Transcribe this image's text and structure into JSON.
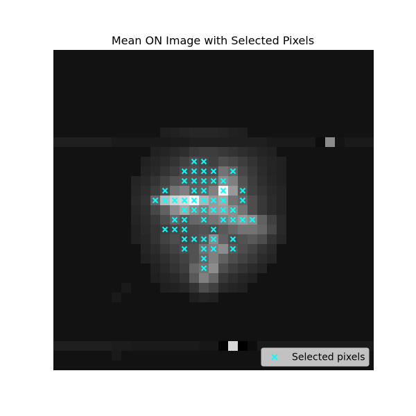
{
  "chart_data": {
    "type": "heatmap",
    "title": "Mean ON Image with Selected Pixels",
    "xlabel": "",
    "ylabel": "",
    "grid": false,
    "axes_visible": false,
    "colormap": "gray",
    "shape": [
      33,
      33
    ],
    "background_value": 0.07,
    "image": [
      [
        0,
        13,
        0.12
      ],
      [
        1,
        13,
        0.12
      ],
      [
        2,
        13,
        0.12
      ],
      [
        3,
        13,
        0.12
      ],
      [
        4,
        13,
        0.12
      ],
      [
        5,
        13,
        0.12
      ],
      [
        6,
        13,
        0.1
      ],
      [
        7,
        13,
        0.1
      ],
      [
        8,
        13,
        0.1
      ],
      [
        9,
        13,
        0.1
      ],
      [
        10,
        13,
        0.1
      ],
      [
        11,
        13,
        0.1
      ],
      [
        12,
        13,
        0.11
      ],
      [
        13,
        13,
        0.11
      ],
      [
        14,
        13,
        0.12
      ],
      [
        15,
        13,
        0.12
      ],
      [
        16,
        13,
        0.12
      ],
      [
        17,
        13,
        0.12
      ],
      [
        18,
        13,
        0.12
      ],
      [
        19,
        13,
        0.12
      ],
      [
        20,
        13,
        0.12
      ],
      [
        21,
        13,
        0.12
      ],
      [
        22,
        13,
        0.1
      ],
      [
        23,
        13,
        0.1
      ],
      [
        24,
        13,
        0.1
      ],
      [
        25,
        13,
        0.1
      ],
      [
        26,
        13,
        0.1
      ],
      [
        27,
        13,
        0.1
      ],
      [
        28,
        13,
        0.1
      ],
      [
        29,
        13,
        0.1
      ],
      [
        30,
        13,
        0.1
      ],
      [
        31,
        13,
        0.1
      ],
      [
        32,
        13,
        0.1
      ],
      [
        28,
        13,
        0.55
      ],
      [
        27,
        13,
        0.05
      ],
      [
        29,
        13,
        0.08
      ],
      [
        11,
        12,
        0.12
      ],
      [
        12,
        12,
        0.13
      ],
      [
        13,
        12,
        0.14
      ],
      [
        14,
        12,
        0.15
      ],
      [
        15,
        12,
        0.15
      ],
      [
        16,
        12,
        0.15
      ],
      [
        17,
        12,
        0.14
      ],
      [
        18,
        12,
        0.13
      ],
      [
        19,
        12,
        0.12
      ],
      [
        10,
        14,
        0.13
      ],
      [
        11,
        14,
        0.14
      ],
      [
        12,
        14,
        0.16
      ],
      [
        13,
        14,
        0.18
      ],
      [
        14,
        14,
        0.22
      ],
      [
        15,
        14,
        0.24
      ],
      [
        16,
        14,
        0.24
      ],
      [
        17,
        14,
        0.22
      ],
      [
        18,
        14,
        0.2
      ],
      [
        19,
        14,
        0.18
      ],
      [
        20,
        14,
        0.16
      ],
      [
        21,
        14,
        0.14
      ],
      [
        22,
        14,
        0.13
      ],
      [
        9,
        15,
        0.13
      ],
      [
        10,
        15,
        0.15
      ],
      [
        11,
        15,
        0.17
      ],
      [
        12,
        15,
        0.2
      ],
      [
        13,
        15,
        0.25
      ],
      [
        14,
        15,
        0.3
      ],
      [
        15,
        15,
        0.28
      ],
      [
        16,
        15,
        0.25
      ],
      [
        17,
        15,
        0.3
      ],
      [
        18,
        15,
        0.28
      ],
      [
        19,
        15,
        0.24
      ],
      [
        20,
        15,
        0.2
      ],
      [
        21,
        15,
        0.16
      ],
      [
        22,
        15,
        0.14
      ],
      [
        23,
        15,
        0.13
      ],
      [
        9,
        16,
        0.14
      ],
      [
        10,
        16,
        0.16
      ],
      [
        11,
        16,
        0.2
      ],
      [
        12,
        16,
        0.24
      ],
      [
        13,
        16,
        0.3
      ],
      [
        14,
        16,
        0.32
      ],
      [
        15,
        16,
        0.3
      ],
      [
        16,
        16,
        0.3
      ],
      [
        17,
        16,
        0.45
      ],
      [
        18,
        16,
        0.4
      ],
      [
        19,
        16,
        0.28
      ],
      [
        20,
        16,
        0.22
      ],
      [
        21,
        16,
        0.17
      ],
      [
        22,
        16,
        0.14
      ],
      [
        23,
        16,
        0.13
      ],
      [
        8,
        17,
        0.14
      ],
      [
        9,
        17,
        0.16
      ],
      [
        10,
        17,
        0.2
      ],
      [
        11,
        17,
        0.26
      ],
      [
        12,
        17,
        0.32
      ],
      [
        13,
        17,
        0.34
      ],
      [
        14,
        17,
        0.35
      ],
      [
        15,
        17,
        0.36
      ],
      [
        16,
        17,
        0.38
      ],
      [
        17,
        17,
        0.55
      ],
      [
        18,
        17,
        0.5
      ],
      [
        19,
        17,
        0.32
      ],
      [
        20,
        17,
        0.24
      ],
      [
        21,
        17,
        0.18
      ],
      [
        22,
        17,
        0.15
      ],
      [
        23,
        17,
        0.13
      ],
      [
        8,
        18,
        0.15
      ],
      [
        9,
        18,
        0.18
      ],
      [
        10,
        18,
        0.24
      ],
      [
        11,
        18,
        0.3
      ],
      [
        12,
        18,
        0.45
      ],
      [
        13,
        18,
        0.5
      ],
      [
        14,
        18,
        0.38
      ],
      [
        15,
        18,
        0.4
      ],
      [
        16,
        18,
        0.5
      ],
      [
        17,
        18,
        0.95
      ],
      [
        18,
        18,
        0.6
      ],
      [
        19,
        18,
        0.35
      ],
      [
        20,
        18,
        0.25
      ],
      [
        21,
        18,
        0.2
      ],
      [
        22,
        18,
        0.16
      ],
      [
        23,
        18,
        0.14
      ],
      [
        8,
        19,
        0.16
      ],
      [
        9,
        19,
        0.2
      ],
      [
        10,
        19,
        0.4
      ],
      [
        11,
        19,
        0.72
      ],
      [
        12,
        19,
        0.82
      ],
      [
        13,
        19,
        0.85
      ],
      [
        14,
        19,
        0.95
      ],
      [
        15,
        19,
        0.7
      ],
      [
        16,
        19,
        0.6
      ],
      [
        17,
        19,
        0.65
      ],
      [
        18,
        19,
        0.45
      ],
      [
        19,
        19,
        0.4
      ],
      [
        20,
        19,
        0.3
      ],
      [
        21,
        19,
        0.22
      ],
      [
        22,
        19,
        0.17
      ],
      [
        23,
        19,
        0.14
      ],
      [
        8,
        20,
        0.15
      ],
      [
        9,
        20,
        0.18
      ],
      [
        10,
        20,
        0.28
      ],
      [
        11,
        20,
        0.38
      ],
      [
        12,
        20,
        0.55
      ],
      [
        13,
        20,
        0.65
      ],
      [
        14,
        20,
        0.55
      ],
      [
        15,
        20,
        0.5
      ],
      [
        16,
        20,
        0.6
      ],
      [
        17,
        20,
        0.62
      ],
      [
        18,
        20,
        0.55
      ],
      [
        19,
        20,
        0.45
      ],
      [
        20,
        20,
        0.3
      ],
      [
        21,
        20,
        0.22
      ],
      [
        22,
        20,
        0.17
      ],
      [
        23,
        20,
        0.14
      ],
      [
        8,
        21,
        0.14
      ],
      [
        9,
        21,
        0.17
      ],
      [
        10,
        21,
        0.22
      ],
      [
        11,
        21,
        0.3
      ],
      [
        12,
        21,
        0.4
      ],
      [
        13,
        21,
        0.35
      ],
      [
        14,
        21,
        0.4
      ],
      [
        15,
        21,
        0.42
      ],
      [
        16,
        21,
        0.45
      ],
      [
        17,
        21,
        0.5
      ],
      [
        18,
        21,
        0.55
      ],
      [
        19,
        21,
        0.6
      ],
      [
        20,
        21,
        0.55
      ],
      [
        21,
        21,
        0.38
      ],
      [
        22,
        21,
        0.25
      ],
      [
        23,
        21,
        0.16
      ],
      [
        8,
        22,
        0.13
      ],
      [
        9,
        22,
        0.16
      ],
      [
        10,
        22,
        0.2
      ],
      [
        11,
        22,
        0.24
      ],
      [
        12,
        22,
        0.28
      ],
      [
        13,
        22,
        0.3
      ],
      [
        14,
        22,
        0.3
      ],
      [
        15,
        22,
        0.32
      ],
      [
        16,
        22,
        0.3
      ],
      [
        17,
        22,
        0.35
      ],
      [
        18,
        22,
        0.4
      ],
      [
        19,
        22,
        0.45
      ],
      [
        20,
        22,
        0.45
      ],
      [
        21,
        22,
        0.4
      ],
      [
        22,
        22,
        0.28
      ],
      [
        23,
        22,
        0.16
      ],
      [
        8,
        23,
        0.13
      ],
      [
        9,
        23,
        0.15
      ],
      [
        10,
        23,
        0.2
      ],
      [
        11,
        23,
        0.26
      ],
      [
        12,
        23,
        0.3
      ],
      [
        13,
        23,
        0.28
      ],
      [
        14,
        23,
        0.3
      ],
      [
        15,
        23,
        0.35
      ],
      [
        16,
        23,
        0.55
      ],
      [
        17,
        23,
        0.38
      ],
      [
        18,
        23,
        0.3
      ],
      [
        19,
        23,
        0.32
      ],
      [
        20,
        23,
        0.35
      ],
      [
        21,
        23,
        0.3
      ],
      [
        22,
        23,
        0.2
      ],
      [
        23,
        23,
        0.15
      ],
      [
        9,
        24,
        0.14
      ],
      [
        10,
        24,
        0.17
      ],
      [
        11,
        24,
        0.22
      ],
      [
        12,
        24,
        0.26
      ],
      [
        13,
        24,
        0.3
      ],
      [
        14,
        24,
        0.32
      ],
      [
        15,
        24,
        0.45
      ],
      [
        16,
        24,
        0.5
      ],
      [
        17,
        24,
        0.55
      ],
      [
        18,
        24,
        0.35
      ],
      [
        19,
        24,
        0.3
      ],
      [
        20,
        24,
        0.26
      ],
      [
        21,
        24,
        0.2
      ],
      [
        22,
        24,
        0.16
      ],
      [
        9,
        25,
        0.13
      ],
      [
        10,
        25,
        0.15
      ],
      [
        11,
        25,
        0.18
      ],
      [
        12,
        25,
        0.22
      ],
      [
        13,
        25,
        0.26
      ],
      [
        14,
        25,
        0.32
      ],
      [
        15,
        25,
        0.4
      ],
      [
        16,
        25,
        0.5
      ],
      [
        17,
        25,
        0.38
      ],
      [
        18,
        25,
        0.3
      ],
      [
        19,
        25,
        0.26
      ],
      [
        20,
        25,
        0.22
      ],
      [
        21,
        25,
        0.17
      ],
      [
        22,
        25,
        0.14
      ],
      [
        10,
        26,
        0.13
      ],
      [
        11,
        26,
        0.16
      ],
      [
        12,
        26,
        0.2
      ],
      [
        13,
        26,
        0.24
      ],
      [
        14,
        26,
        0.4
      ],
      [
        15,
        26,
        0.45
      ],
      [
        16,
        26,
        0.55
      ],
      [
        17,
        26,
        0.3
      ],
      [
        18,
        26,
        0.24
      ],
      [
        19,
        26,
        0.2
      ],
      [
        20,
        26,
        0.17
      ],
      [
        21,
        26,
        0.14
      ],
      [
        10,
        27,
        0.12
      ],
      [
        11,
        27,
        0.14
      ],
      [
        12,
        27,
        0.16
      ],
      [
        13,
        27,
        0.2
      ],
      [
        14,
        27,
        0.35
      ],
      [
        15,
        27,
        0.5
      ],
      [
        16,
        27,
        0.4
      ],
      [
        17,
        27,
        0.22
      ],
      [
        18,
        27,
        0.18
      ],
      [
        19,
        27,
        0.15
      ],
      [
        20,
        27,
        0.13
      ],
      [
        11,
        28,
        0.12
      ],
      [
        12,
        28,
        0.13
      ],
      [
        13,
        28,
        0.15
      ],
      [
        14,
        28,
        0.2
      ],
      [
        15,
        28,
        0.3
      ],
      [
        16,
        28,
        0.25
      ],
      [
        17,
        28,
        0.16
      ],
      [
        18,
        28,
        0.14
      ],
      [
        19,
        28,
        0.13
      ],
      [
        14,
        29,
        0.12
      ],
      [
        15,
        29,
        0.14
      ],
      [
        16,
        29,
        0.13
      ],
      [
        7,
        28,
        0.1
      ],
      [
        6,
        29,
        0.1
      ],
      [
        6,
        35,
        0.1
      ],
      [
        0,
        34,
        0.12
      ],
      [
        1,
        34,
        0.12
      ],
      [
        2,
        34,
        0.12
      ],
      [
        3,
        34,
        0.12
      ],
      [
        4,
        34,
        0.12
      ],
      [
        5,
        34,
        0.12
      ],
      [
        6,
        34,
        0.11
      ],
      [
        7,
        34,
        0.11
      ],
      [
        8,
        34,
        0.1
      ],
      [
        9,
        34,
        0.1
      ],
      [
        10,
        34,
        0.1
      ],
      [
        11,
        34,
        0.1
      ],
      [
        12,
        34,
        0.1
      ],
      [
        13,
        34,
        0.1
      ],
      [
        14,
        34,
        0.1
      ],
      [
        15,
        34,
        0.09
      ],
      [
        16,
        34,
        0.09
      ],
      [
        17,
        34,
        0.02
      ],
      [
        18,
        34,
        0.85
      ],
      [
        19,
        34,
        0.0
      ],
      [
        20,
        34,
        0.05
      ],
      [
        21,
        34,
        0.1
      ],
      [
        22,
        34,
        0.1
      ],
      [
        23,
        34,
        0.1
      ],
      [
        24,
        34,
        0.1
      ],
      [
        25,
        34,
        0.1
      ],
      [
        26,
        34,
        0.1
      ],
      [
        27,
        34,
        0.1
      ],
      [
        28,
        34,
        0.1
      ],
      [
        29,
        34,
        0.1
      ],
      [
        30,
        34,
        0.1
      ],
      [
        31,
        34,
        0.1
      ],
      [
        32,
        34,
        0.1
      ]
    ],
    "series": [
      {
        "name": "Selected pixels",
        "marker": "x",
        "color": "#00ffff",
        "points": [
          [
            14,
            15
          ],
          [
            15,
            15
          ],
          [
            13,
            16
          ],
          [
            14,
            16
          ],
          [
            15,
            16
          ],
          [
            16,
            16
          ],
          [
            18,
            16
          ],
          [
            13,
            17
          ],
          [
            14,
            17
          ],
          [
            15,
            17
          ],
          [
            16,
            17
          ],
          [
            17,
            17
          ],
          [
            11,
            18
          ],
          [
            14,
            18
          ],
          [
            15,
            18
          ],
          [
            17,
            18
          ],
          [
            19,
            18
          ],
          [
            10,
            19
          ],
          [
            11,
            19
          ],
          [
            12,
            19
          ],
          [
            13,
            19
          ],
          [
            14,
            19
          ],
          [
            15,
            19
          ],
          [
            16,
            19
          ],
          [
            17,
            19
          ],
          [
            19,
            19
          ],
          [
            13,
            20
          ],
          [
            14,
            20
          ],
          [
            15,
            20
          ],
          [
            16,
            20
          ],
          [
            17,
            20
          ],
          [
            18,
            20
          ],
          [
            12,
            21
          ],
          [
            13,
            21
          ],
          [
            15,
            21
          ],
          [
            17,
            21
          ],
          [
            18,
            21
          ],
          [
            19,
            21
          ],
          [
            20,
            21
          ],
          [
            11,
            22
          ],
          [
            12,
            22
          ],
          [
            13,
            22
          ],
          [
            16,
            22
          ],
          [
            13,
            23
          ],
          [
            14,
            23
          ],
          [
            15,
            23
          ],
          [
            16,
            23
          ],
          [
            18,
            23
          ],
          [
            13,
            24
          ],
          [
            15,
            24
          ],
          [
            16,
            24
          ],
          [
            18,
            24
          ],
          [
            15,
            25
          ],
          [
            15,
            26
          ]
        ]
      }
    ],
    "legend": {
      "position": "lower-right",
      "label": "Selected pixels"
    }
  }
}
